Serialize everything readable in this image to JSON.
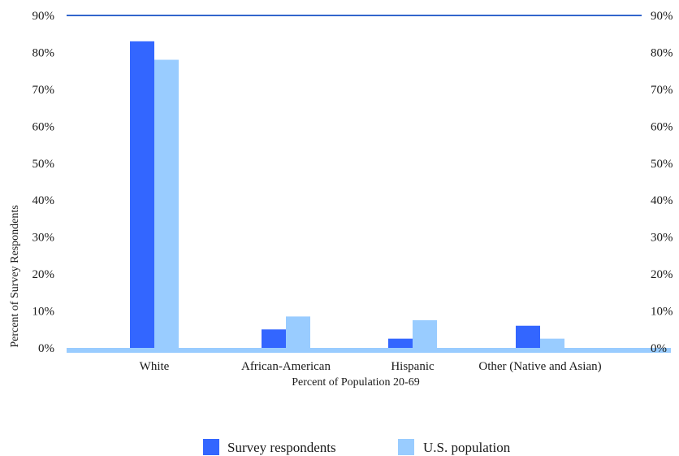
{
  "chart_data": {
    "type": "bar",
    "title": "",
    "xlabel": "Percent of Population 20-69",
    "ylabel": "Percent of Survey Respondents",
    "categories": [
      "White",
      "African-American",
      "Hispanic",
      "Other (Native and Asian)"
    ],
    "series": [
      {
        "name": "Survey respondents",
        "color": "#3366ff",
        "values": [
          83,
          5,
          2.5,
          6
        ]
      },
      {
        "name": "U.S. population",
        "color": "#99ccff",
        "values": [
          78,
          8.5,
          7.5,
          2.5
        ]
      }
    ],
    "ylim": [
      0,
      90
    ],
    "y_ticks": [
      "0%",
      "10%",
      "20%",
      "30%",
      "40%",
      "50%",
      "60%",
      "70%",
      "80%",
      "90%"
    ],
    "secondary_y_ticks": [
      "0%",
      "10%",
      "20%",
      "30%",
      "40%",
      "50%",
      "60%",
      "70%",
      "80%",
      "90%"
    ],
    "grid": false,
    "legend_position": "bottom",
    "reference_line_color": "#3366cc",
    "floor_color": "#99ccff"
  }
}
